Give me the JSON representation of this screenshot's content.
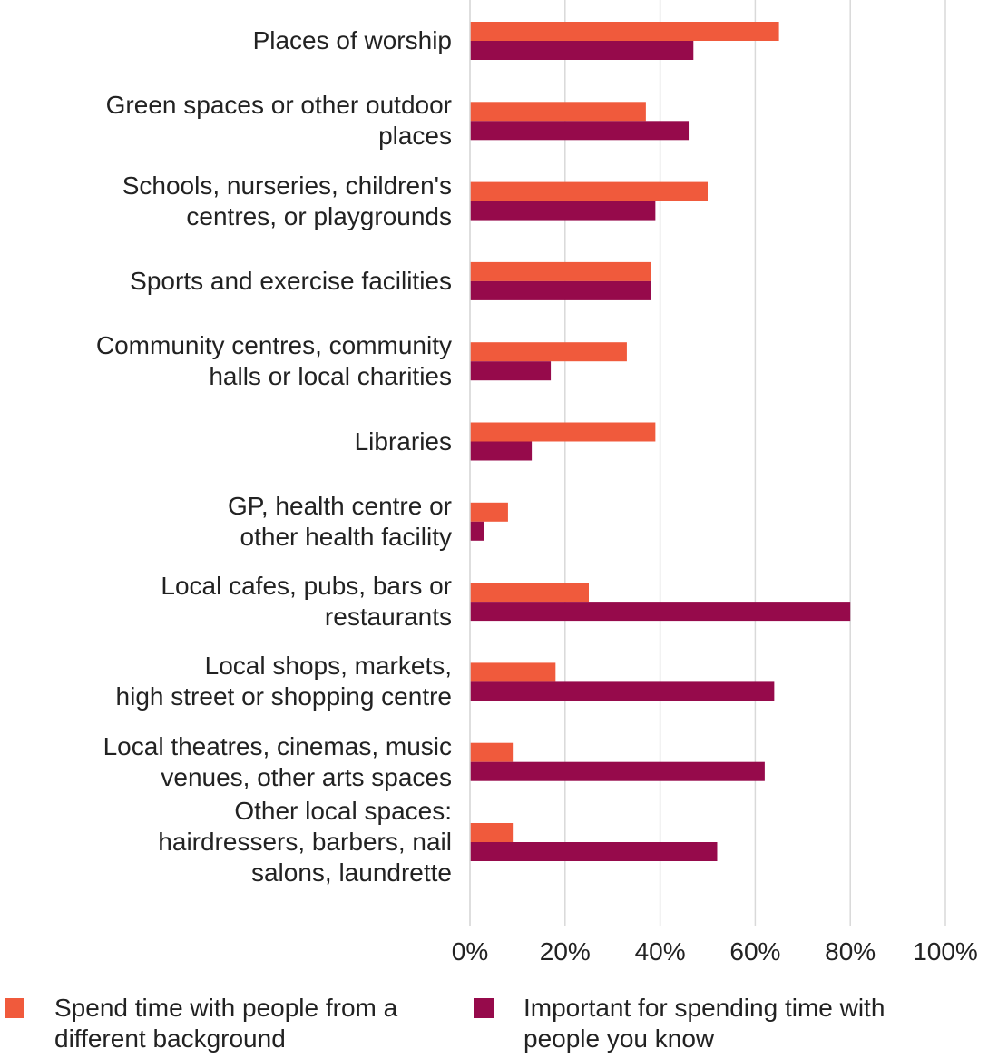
{
  "chart_data": {
    "type": "bar",
    "orientation": "horizontal",
    "categories": [
      "Places of worship",
      "Green spaces or other outdoor\nplaces",
      "Schools, nurseries, children's\ncentres, or playgrounds",
      "Sports and exercise facilities",
      "Community centres, community\nhalls or local charities",
      "Libraries",
      "GP, health centre or\nother health facility",
      "Local cafes, pubs, bars or\nrestaurants",
      "Local shops, markets,\nhigh street or shopping centre",
      "Local theatres, cinemas, music\nvenues, other arts spaces",
      "Other local spaces:\nhairdressers, barbers, nail\nsalons, laundrette"
    ],
    "series": [
      {
        "name": "Spend time with people from a different background",
        "color": "#f05a3c",
        "values": [
          65,
          37,
          50,
          38,
          33,
          39,
          8,
          25,
          18,
          9,
          9
        ]
      },
      {
        "name": "Important for spending time with people you know",
        "color": "#960a4b",
        "values": [
          47,
          46,
          39,
          38,
          17,
          13,
          3,
          80,
          64,
          62,
          52
        ]
      }
    ],
    "xlim": [
      0,
      100
    ],
    "xticks": [
      {
        "value": 0,
        "label": "0%"
      },
      {
        "value": 20,
        "label": "20%"
      },
      {
        "value": 40,
        "label": "40%"
      },
      {
        "value": 60,
        "label": "60%"
      },
      {
        "value": 80,
        "label": "80%"
      },
      {
        "value": 100,
        "label": "100%"
      }
    ],
    "grid": true,
    "legend": "bottom"
  }
}
